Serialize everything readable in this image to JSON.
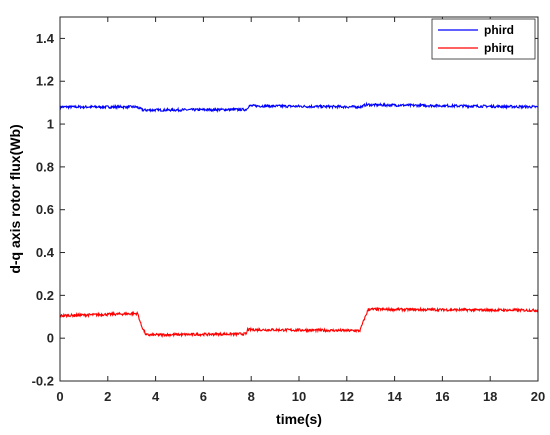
{
  "chart_data": {
    "type": "line",
    "title": "",
    "xlabel": "time(s)",
    "ylabel": "d-q axis rotor flux(Wb)",
    "xlim": [
      0,
      20
    ],
    "ylim": [
      -0.2,
      1.5
    ],
    "xticks": [
      "0",
      "2",
      "4",
      "6",
      "8",
      "10",
      "12",
      "14",
      "16",
      "18",
      "20"
    ],
    "yticks": [
      "-0.2",
      "0",
      "0.2",
      "0.4",
      "0.6",
      "0.8",
      "1",
      "1.2",
      "1.4"
    ],
    "grid": false,
    "legend_position": "top-right",
    "series": [
      {
        "name": "phird",
        "color": "#0000ff",
        "x": [
          0,
          3.2,
          3.5,
          7.8,
          7.9,
          12.6,
          12.8,
          20
        ],
        "y": [
          1.08,
          1.08,
          1.065,
          1.068,
          1.085,
          1.08,
          1.09,
          1.08
        ]
      },
      {
        "name": "phirq",
        "color": "#ff0000",
        "x": [
          0,
          3.25,
          3.4,
          3.6,
          7.8,
          7.85,
          12.55,
          12.7,
          12.9,
          20
        ],
        "y": [
          0.105,
          0.115,
          0.06,
          0.015,
          0.02,
          0.04,
          0.035,
          0.08,
          0.135,
          0.13
        ]
      }
    ]
  }
}
